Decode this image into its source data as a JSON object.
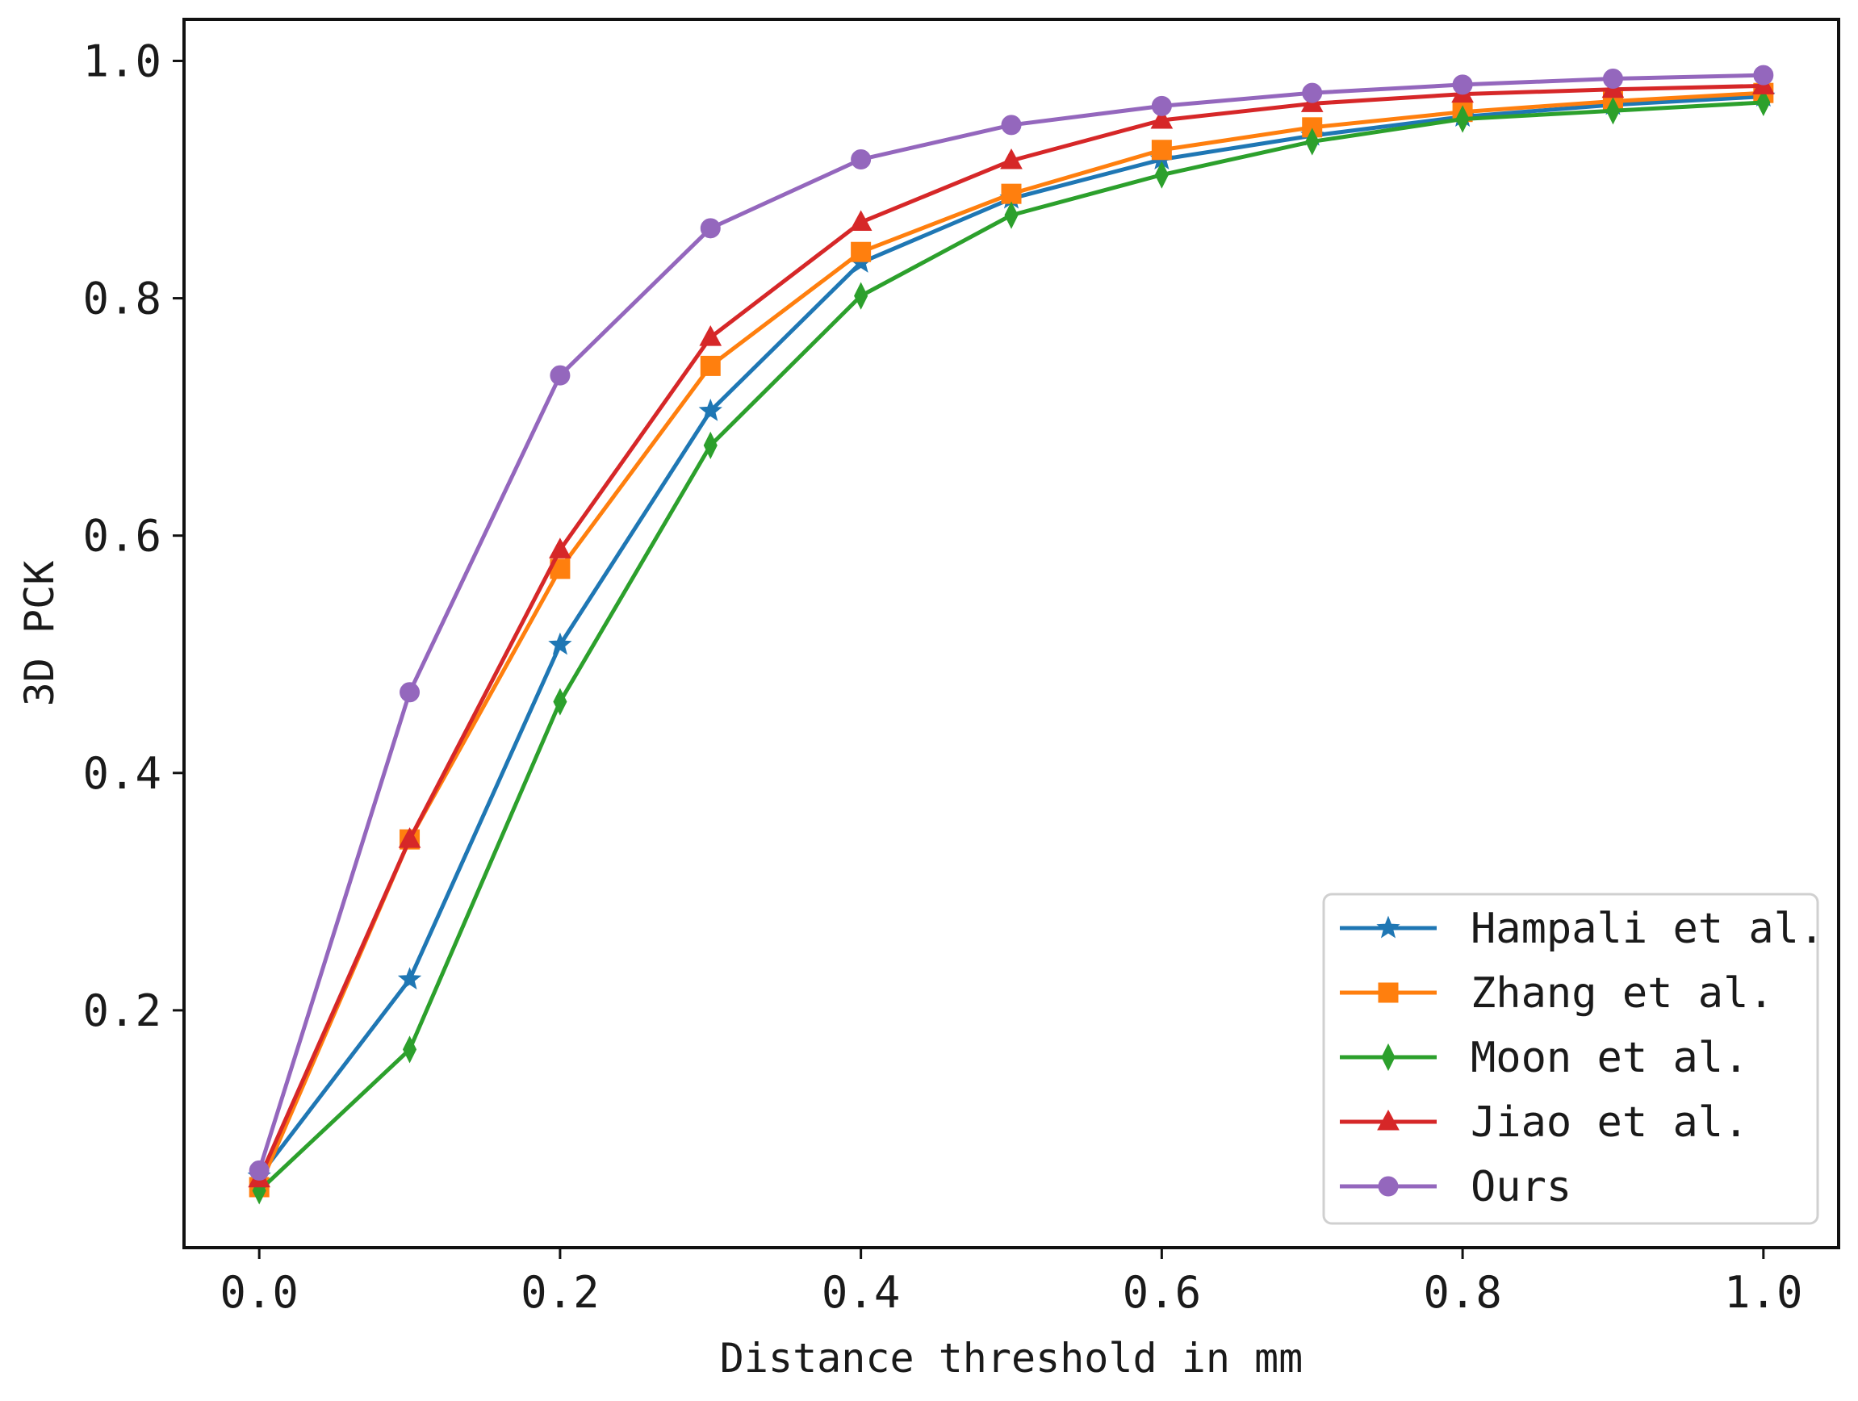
{
  "chart_data": {
    "type": "line",
    "title": "",
    "xlabel": "Distance threshold in mm",
    "ylabel": "3D PCK",
    "xlim": [
      -0.05,
      1.05
    ],
    "ylim": [
      0.0,
      1.035
    ],
    "x": [
      0.0,
      0.1,
      0.2,
      0.3,
      0.4,
      0.5,
      0.6,
      0.7,
      0.8,
      0.9,
      1.0
    ],
    "xticks": [
      0.0,
      0.2,
      0.4,
      0.6,
      0.8,
      1.0
    ],
    "xtick_labels": [
      "0.0",
      "0.2",
      "0.4",
      "0.6",
      "0.8",
      "1.0"
    ],
    "yticks": [
      0.2,
      0.4,
      0.6,
      0.8,
      1.0
    ],
    "ytick_labels": [
      "0.2",
      "0.4",
      "0.6",
      "0.8",
      "1.0"
    ],
    "grid": false,
    "legend_position": "bottom-right",
    "series": [
      {
        "name": "Hampali et al.",
        "color": "#1f77b4",
        "marker": "star",
        "values": [
          0.06,
          0.226,
          0.508,
          0.705,
          0.83,
          0.884,
          0.917,
          0.937,
          0.953,
          0.963,
          0.97
        ]
      },
      {
        "name": "Zhang et al.",
        "color": "#ff7f0e",
        "marker": "square",
        "values": [
          0.051,
          0.344,
          0.572,
          0.743,
          0.839,
          0.888,
          0.925,
          0.944,
          0.957,
          0.966,
          0.973
        ]
      },
      {
        "name": "Moon et al.",
        "color": "#2ca02c",
        "marker": "thin_diamond",
        "values": [
          0.048,
          0.167,
          0.46,
          0.676,
          0.802,
          0.87,
          0.904,
          0.932,
          0.951,
          0.958,
          0.965
        ]
      },
      {
        "name": "Jiao et al.",
        "color": "#d62728",
        "marker": "triangle",
        "values": [
          0.058,
          0.344,
          0.588,
          0.767,
          0.864,
          0.916,
          0.95,
          0.964,
          0.972,
          0.976,
          0.979
        ]
      },
      {
        "name": "Ours",
        "color": "#9467bd",
        "marker": "circle",
        "values": [
          0.065,
          0.468,
          0.735,
          0.859,
          0.917,
          0.946,
          0.962,
          0.973,
          0.98,
          0.985,
          0.988
        ]
      }
    ]
  }
}
